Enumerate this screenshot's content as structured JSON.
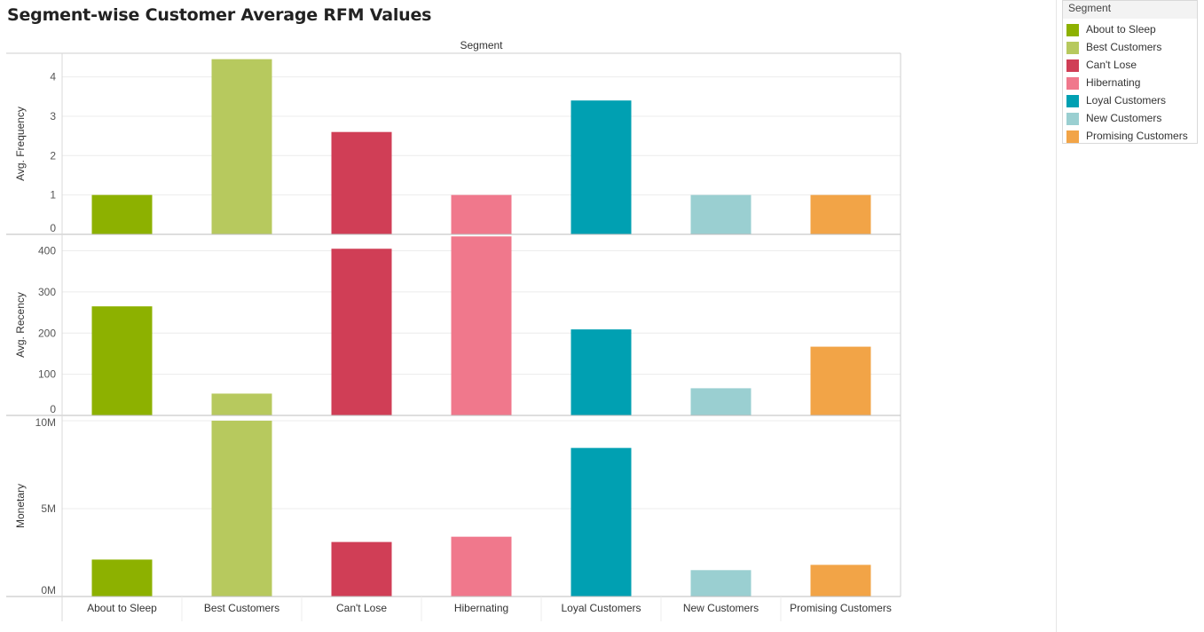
{
  "title": "Segment-wise Customer Average RFM Values",
  "legend": {
    "title": "Segment",
    "items": [
      {
        "label": "About to Sleep",
        "color": "#8db100"
      },
      {
        "label": "Best Customers",
        "color": "#b7c95e"
      },
      {
        "label": "Can't Lose",
        "color": "#d03e56"
      },
      {
        "label": "Hibernating",
        "color": "#f0788c"
      },
      {
        "label": "Loyal Customers",
        "color": "#00a0b2"
      },
      {
        "label": "New Customers",
        "color": "#9acfd1"
      },
      {
        "label": "Promising Customers",
        "color": "#f2a447"
      }
    ]
  },
  "chart_data": {
    "type": "bar",
    "column_header": "Segment",
    "categories": [
      "About to Sleep",
      "Best Customers",
      "Can't Lose",
      "Hibernating",
      "Loyal Customers",
      "New Customers",
      "Promising Customers"
    ],
    "colors": [
      "#8db100",
      "#b7c95e",
      "#d03e56",
      "#f0788c",
      "#00a0b2",
      "#9acfd1",
      "#f2a447"
    ],
    "panels": [
      {
        "ylabel": "Avg. Frequency",
        "values": [
          1.0,
          4.45,
          2.6,
          1.0,
          3.4,
          1.0,
          1.0
        ],
        "ylim": [
          0,
          4.6
        ],
        "ticks": [
          0,
          1,
          2,
          3,
          4
        ],
        "tick_labels": [
          "0",
          "1",
          "2",
          "3",
          "4"
        ]
      },
      {
        "ylabel": "Avg. Recency",
        "values": [
          265,
          53,
          405,
          435,
          209,
          66,
          167
        ],
        "ylim": [
          0,
          440
        ],
        "ticks": [
          0,
          100,
          200,
          300,
          400
        ],
        "tick_labels": [
          "0",
          "100",
          "200",
          "300",
          "400"
        ]
      },
      {
        "ylabel": "Monetary",
        "values": [
          2100000,
          10000000,
          3100000,
          3400000,
          8450000,
          1500000,
          1800000
        ],
        "ylim": [
          0,
          10300000
        ],
        "ticks": [
          0,
          5000000,
          10000000
        ],
        "tick_labels": [
          "0M",
          "5M",
          "10M"
        ]
      }
    ],
    "grid": true,
    "legend_position": "right"
  }
}
